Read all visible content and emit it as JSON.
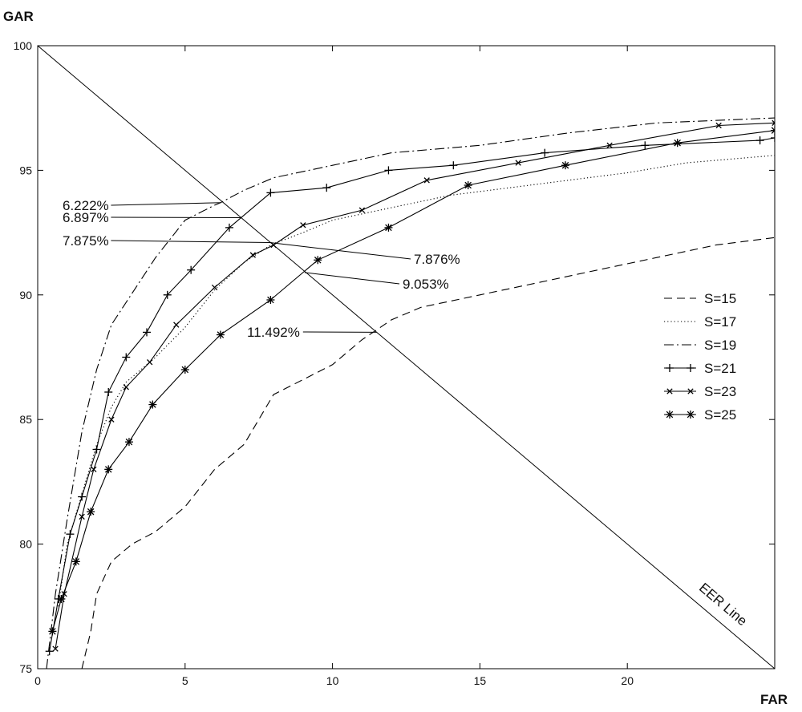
{
  "chart_data": {
    "type": "line",
    "title": "",
    "xlabel": "FAR",
    "ylabel": "GAR",
    "xlim": [
      0,
      25
    ],
    "ylim": [
      75,
      100
    ],
    "xticks": [
      0,
      5,
      10,
      15,
      20
    ],
    "yticks": [
      75,
      80,
      85,
      90,
      95,
      100
    ],
    "grid": false,
    "legend_position": "right",
    "series": [
      {
        "name": "S=15",
        "style": "dashed",
        "marker": "none",
        "x": [
          1.5,
          1.8,
          2.0,
          2.5,
          3.2,
          4.0,
          5.0,
          6.0,
          7.0,
          7.5,
          8.0,
          9.0,
          10.0,
          11.0,
          12.0,
          13.0,
          15.0,
          17.0,
          19.0,
          21.0,
          23.0,
          25.0
        ],
        "y": [
          75.0,
          76.5,
          78.0,
          79.3,
          80.0,
          80.5,
          81.5,
          83.0,
          84.0,
          85.0,
          86.0,
          86.6,
          87.2,
          88.2,
          89.0,
          89.5,
          90.0,
          90.5,
          91.0,
          91.5,
          92.0,
          92.3
        ]
      },
      {
        "name": "S=17",
        "style": "dotted",
        "marker": "none",
        "x": [
          0.7,
          1.0,
          1.5,
          2.0,
          2.5,
          3.0,
          4.0,
          5.0,
          6.0,
          7.0,
          7.9,
          9.0,
          10.0,
          12.0,
          14.0,
          16.0,
          18.0,
          20.0,
          22.0,
          25.0
        ],
        "y": [
          77.5,
          80.0,
          82.0,
          84.0,
          85.5,
          86.5,
          87.5,
          88.7,
          90.2,
          91.3,
          92.0,
          92.5,
          93.0,
          93.5,
          94.0,
          94.3,
          94.6,
          94.9,
          95.3,
          95.6
        ]
      },
      {
        "name": "S=19",
        "style": "dashdot",
        "marker": "none",
        "x": [
          0.3,
          0.6,
          1.0,
          1.5,
          2.0,
          2.5,
          3.0,
          4.0,
          5.0,
          6.0,
          6.2,
          7.0,
          8.0,
          10.0,
          12.0,
          15.0,
          18.0,
          21.0,
          25.0
        ],
        "y": [
          75.0,
          78.0,
          81.0,
          84.5,
          87.0,
          88.8,
          89.7,
          91.5,
          93.0,
          93.6,
          93.7,
          94.2,
          94.7,
          95.2,
          95.7,
          96.0,
          96.5,
          96.9,
          97.1
        ]
      },
      {
        "name": "S=21",
        "style": "solid",
        "marker": "plus",
        "x": [
          0.4,
          0.7,
          1.1,
          1.5,
          2.0,
          2.4,
          3.0,
          3.7,
          4.4,
          5.2,
          6.5,
          7.9,
          9.8,
          11.9,
          14.1,
          17.2,
          20.6,
          24.5,
          25.0
        ],
        "y": [
          75.7,
          77.8,
          80.4,
          81.9,
          83.8,
          86.1,
          87.5,
          88.5,
          90.0,
          91.0,
          92.7,
          94.1,
          94.3,
          95.0,
          95.2,
          95.7,
          96.0,
          96.2,
          96.3
        ]
      },
      {
        "name": "S=23",
        "style": "solid",
        "marker": "x",
        "x": [
          0.6,
          0.9,
          1.5,
          1.9,
          2.5,
          3.0,
          3.8,
          4.7,
          6.0,
          7.3,
          8.0,
          9.0,
          11.0,
          13.2,
          16.3,
          19.4,
          23.1,
          25.0
        ],
        "y": [
          75.8,
          78.0,
          81.1,
          83.0,
          85.0,
          86.3,
          87.3,
          88.8,
          90.3,
          91.6,
          92.0,
          92.8,
          93.4,
          94.6,
          95.3,
          96.0,
          96.8,
          96.9
        ]
      },
      {
        "name": "S=25",
        "style": "solid",
        "marker": "asterisk",
        "x": [
          0.5,
          0.8,
          1.3,
          1.8,
          2.4,
          3.1,
          3.9,
          5.0,
          6.2,
          7.9,
          9.5,
          11.9,
          14.6,
          17.9,
          21.7,
          25.0
        ],
        "y": [
          76.5,
          77.8,
          79.3,
          81.3,
          83.0,
          84.1,
          85.6,
          87.0,
          88.4,
          89.8,
          91.4,
          92.7,
          94.4,
          95.2,
          96.1,
          96.6
        ]
      }
    ],
    "reference_line": {
      "label": "EER Line",
      "x": [
        0,
        25
      ],
      "y": [
        100,
        75
      ]
    },
    "annotations": [
      {
        "text": "6.222%",
        "x": 6.222,
        "y": 93.7,
        "side": "left"
      },
      {
        "text": "6.897%",
        "x": 6.897,
        "y": 93.1,
        "side": "left"
      },
      {
        "text": "7.875%",
        "x": 7.875,
        "y": 92.1,
        "side": "left"
      },
      {
        "text": "7.876%",
        "x": 7.876,
        "y": 92.1,
        "side": "right"
      },
      {
        "text": "9.053%",
        "x": 9.053,
        "y": 90.9,
        "side": "right"
      },
      {
        "text": "11.492%",
        "x": 11.492,
        "y": 88.5,
        "side": "left"
      }
    ]
  }
}
